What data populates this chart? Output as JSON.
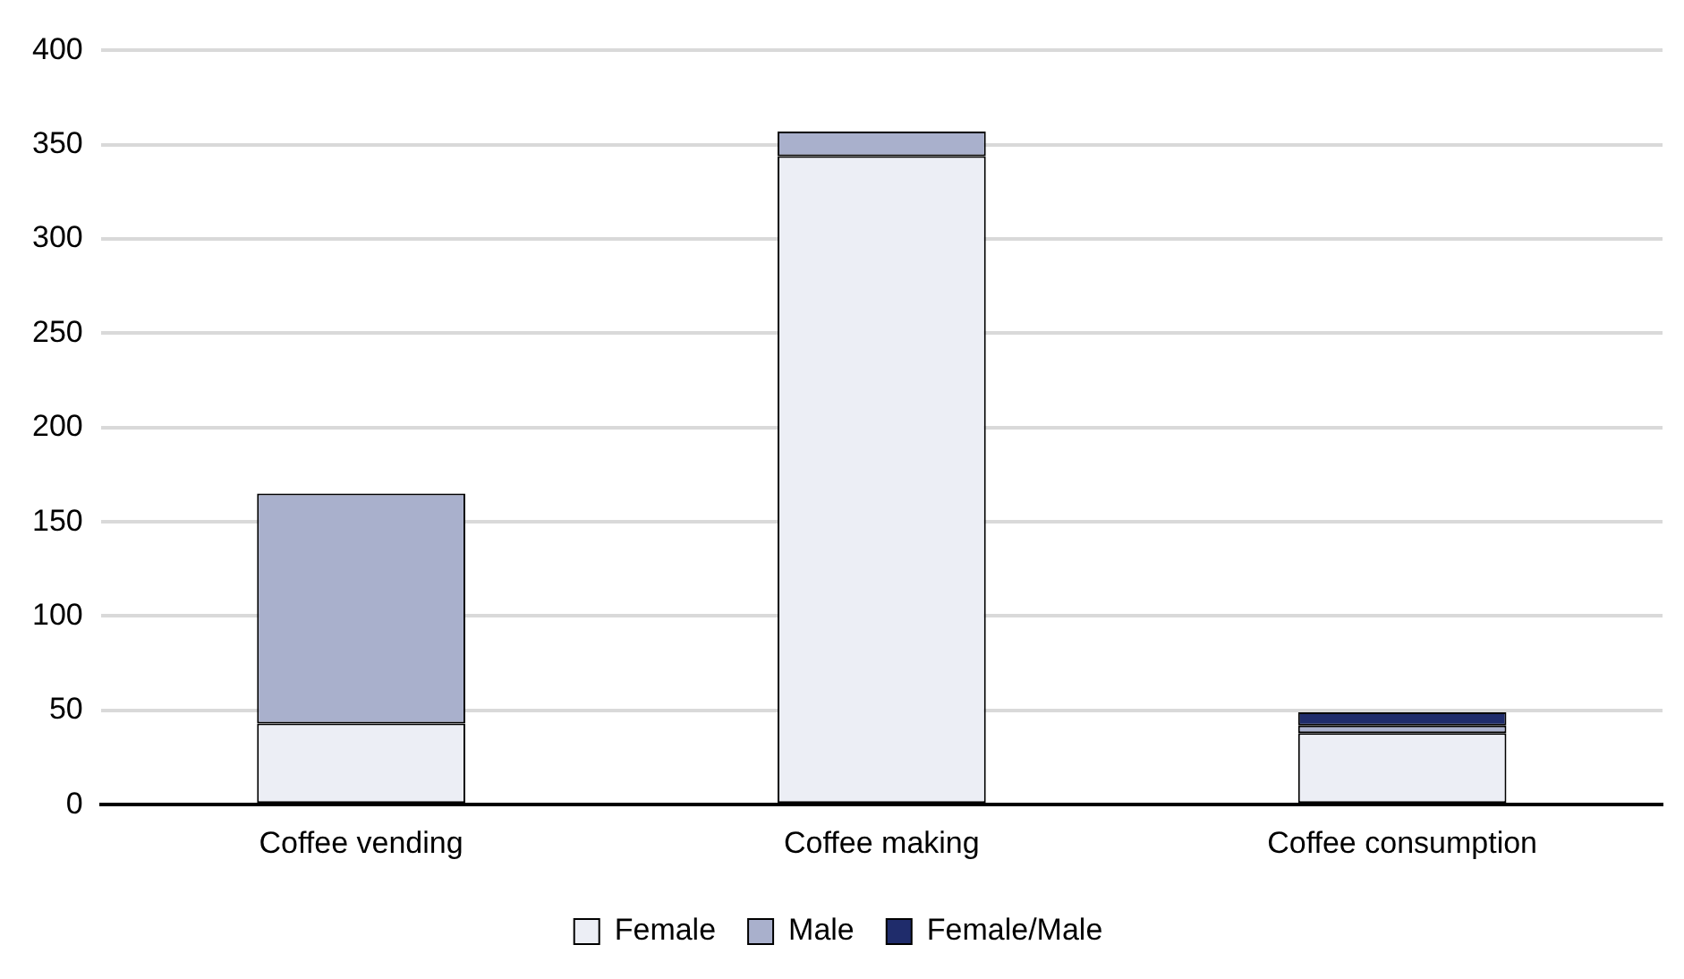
{
  "chart_data": {
    "type": "bar",
    "stacked": true,
    "categories": [
      "Coffee vending",
      "Coffee making",
      "Coffee consumption"
    ],
    "series": [
      {
        "name": "Female",
        "color": "#eceef5",
        "values": [
          43,
          344,
          38
        ]
      },
      {
        "name": "Male",
        "color": "#a9b0cc",
        "values": [
          122,
          13,
          4
        ]
      },
      {
        "name": "Female/Male",
        "color": "#1f2c6b",
        "values": [
          null,
          null,
          7
        ]
      }
    ],
    "ylim": [
      0,
      400
    ],
    "yticks": [
      0,
      50,
      100,
      150,
      200,
      250,
      300,
      350,
      400
    ],
    "grid": "y",
    "legend": "bottom"
  }
}
